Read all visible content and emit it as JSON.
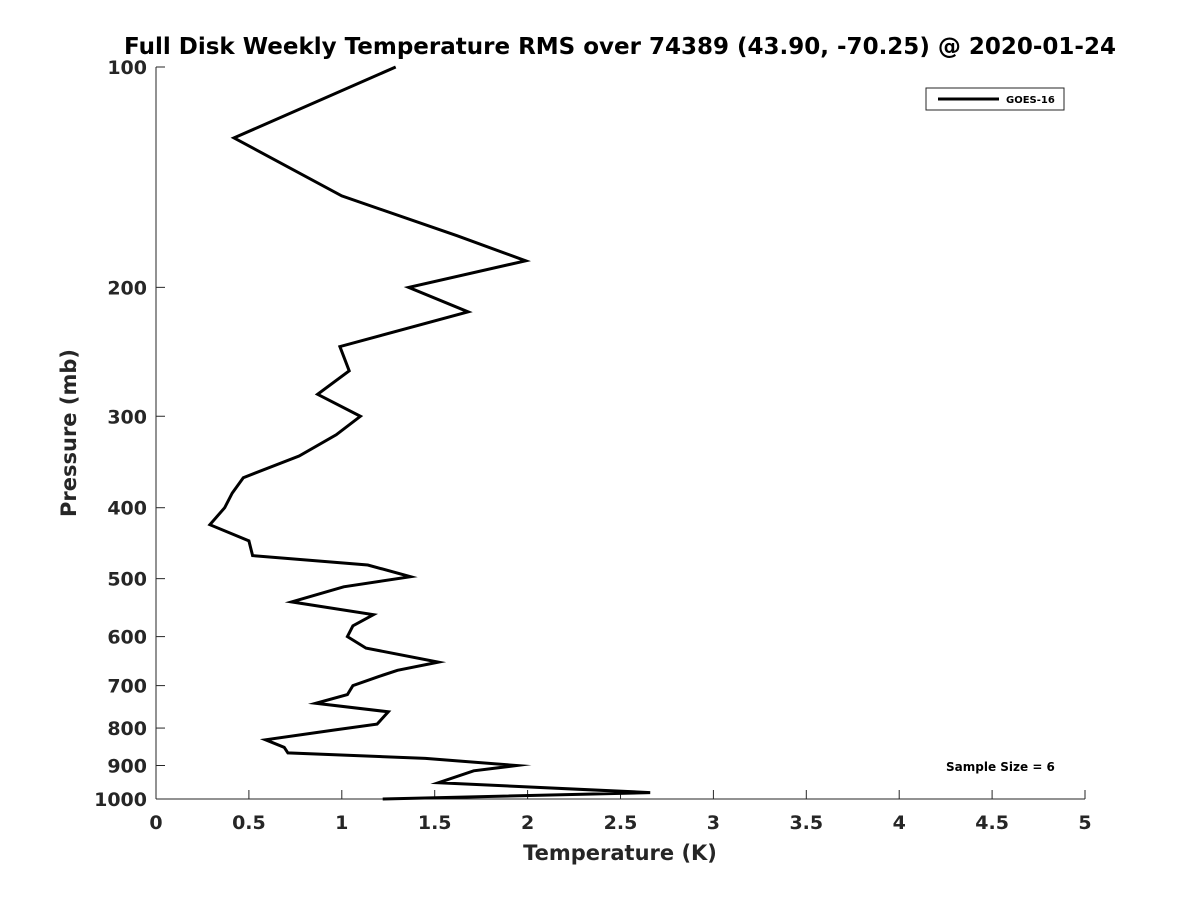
{
  "chart_data": {
    "type": "line",
    "title": "Full Disk Weekly Temperature RMS over 74389 (43.90, -70.25) @ 2020-01-24",
    "xlabel": "Temperature (K)",
    "ylabel": "Pressure (mb)",
    "xlim": [
      0,
      5
    ],
    "ylim": [
      100,
      1000
    ],
    "yscale": "log",
    "y_reversed": true,
    "grid": false,
    "legend_position": "top-right",
    "x_ticks": [
      "0",
      "0.5",
      "1",
      "1.5",
      "2",
      "2.5",
      "3",
      "3.5",
      "4",
      "4.5",
      "5"
    ],
    "y_ticks": [
      "100",
      "200",
      "300",
      "400",
      "500",
      "600",
      "700",
      "800",
      "900",
      "1000"
    ],
    "annotation": "Sample Size = 6",
    "series": [
      {
        "name": "GOES-16",
        "color": "#000000",
        "points": [
          [
            1.29,
            100
          ],
          [
            0.42,
            125
          ],
          [
            1.0,
            150
          ],
          [
            1.62,
            170
          ],
          [
            1.99,
            184
          ],
          [
            1.36,
            200
          ],
          [
            1.68,
            216
          ],
          [
            0.99,
            241
          ],
          [
            1.04,
            260
          ],
          [
            0.87,
            280
          ],
          [
            1.1,
            300
          ],
          [
            0.97,
            318
          ],
          [
            0.77,
            340
          ],
          [
            0.47,
            364
          ],
          [
            0.41,
            382
          ],
          [
            0.37,
            400
          ],
          [
            0.29,
            422
          ],
          [
            0.5,
            444
          ],
          [
            0.52,
            465
          ],
          [
            1.14,
            479
          ],
          [
            1.37,
            497
          ],
          [
            1.01,
            513
          ],
          [
            0.73,
            538
          ],
          [
            1.17,
            560
          ],
          [
            1.06,
            580
          ],
          [
            1.03,
            600
          ],
          [
            1.13,
            622
          ],
          [
            1.52,
            650
          ],
          [
            1.3,
            667
          ],
          [
            1.2,
            680
          ],
          [
            1.06,
            700
          ],
          [
            1.03,
            720
          ],
          [
            0.86,
            740
          ],
          [
            1.25,
            760
          ],
          [
            1.19,
            790
          ],
          [
            0.96,
            805
          ],
          [
            0.59,
            830
          ],
          [
            0.69,
            850
          ],
          [
            0.71,
            865
          ],
          [
            1.45,
            880
          ],
          [
            1.94,
            900
          ],
          [
            1.71,
            915
          ],
          [
            1.52,
            950
          ],
          [
            2.66,
            980
          ],
          [
            1.22,
            1000
          ]
        ]
      }
    ]
  }
}
